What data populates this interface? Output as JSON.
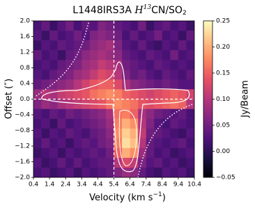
{
  "chart_data": {
    "type": "heatmap",
    "title_parts": [
      "L1448IRS3A ",
      "H",
      "13",
      "CN/SO",
      "2"
    ],
    "xlabel_parts": [
      "Velocity (km s",
      "−1",
      ")"
    ],
    "ylabel": "Offset (″)",
    "colorbar_label": "Jy/Beam",
    "colormap": "magma",
    "x": [
      0.65,
      1.15,
      1.65,
      2.15,
      2.65,
      3.15,
      3.65,
      4.15,
      4.65,
      5.15,
      5.65,
      6.15,
      6.65,
      7.15,
      7.65,
      8.15,
      8.65,
      9.15,
      9.65,
      10.15
    ],
    "y": [
      1.875,
      1.625,
      1.375,
      1.125,
      0.875,
      0.625,
      0.375,
      0.125,
      -0.125,
      -0.375,
      -0.625,
      -0.875,
      -1.125,
      -1.375,
      -1.625,
      -1.875
    ],
    "z": [
      [
        0.02,
        0.04,
        0.01,
        0.03,
        0.05,
        0.02,
        0.04,
        0.03,
        0.06,
        0.05,
        0.04,
        0.03,
        0.02,
        0.05,
        0.01,
        0.03,
        0.04,
        0.02,
        0.03,
        0.01
      ],
      [
        0.03,
        0.01,
        0.04,
        0.02,
        0.03,
        0.05,
        0.03,
        0.06,
        0.07,
        0.06,
        0.05,
        0.02,
        0.04,
        0.02,
        0.03,
        0.05,
        0.02,
        0.03,
        0.01,
        0.04
      ],
      [
        0.01,
        0.03,
        0.02,
        0.04,
        0.03,
        0.04,
        0.05,
        0.07,
        0.08,
        0.09,
        0.06,
        0.03,
        0.02,
        0.04,
        0.02,
        0.01,
        0.03,
        0.02,
        0.04,
        0.02
      ],
      [
        0.04,
        0.02,
        0.03,
        0.01,
        0.04,
        0.05,
        0.07,
        0.08,
        0.09,
        0.08,
        0.07,
        0.04,
        0.03,
        0.02,
        0.04,
        0.03,
        0.02,
        0.05,
        0.02,
        0.03
      ],
      [
        0.02,
        0.03,
        0.02,
        0.04,
        0.05,
        0.06,
        0.08,
        0.09,
        0.11,
        0.1,
        0.09,
        0.05,
        0.04,
        0.03,
        0.02,
        0.04,
        0.03,
        0.02,
        0.03,
        0.02
      ],
      [
        0.03,
        0.02,
        0.04,
        0.05,
        0.06,
        0.08,
        0.09,
        0.11,
        0.13,
        0.12,
        0.1,
        0.06,
        0.04,
        0.05,
        0.03,
        0.02,
        0.04,
        0.03,
        0.02,
        0.04
      ],
      [
        0.04,
        0.05,
        0.06,
        0.07,
        0.08,
        0.1,
        0.12,
        0.14,
        0.15,
        0.15,
        0.13,
        0.09,
        0.07,
        0.06,
        0.05,
        0.04,
        0.05,
        0.04,
        0.03,
        0.03
      ],
      [
        0.08,
        0.1,
        0.09,
        0.11,
        0.12,
        0.13,
        0.14,
        0.16,
        0.17,
        0.18,
        0.17,
        0.15,
        0.14,
        0.13,
        0.12,
        0.13,
        0.14,
        0.15,
        0.14,
        0.12
      ],
      [
        0.06,
        0.08,
        0.07,
        0.09,
        0.1,
        0.11,
        0.12,
        0.13,
        0.14,
        0.16,
        0.18,
        0.17,
        0.16,
        0.14,
        0.13,
        0.14,
        0.15,
        0.16,
        0.15,
        0.1
      ],
      [
        0.03,
        0.02,
        0.04,
        0.03,
        0.05,
        0.04,
        0.05,
        0.06,
        0.07,
        0.09,
        0.16,
        0.17,
        0.15,
        0.09,
        0.07,
        0.05,
        0.04,
        0.03,
        0.04,
        0.02
      ],
      [
        0.02,
        0.03,
        0.01,
        0.04,
        0.02,
        0.03,
        0.04,
        0.05,
        0.06,
        0.08,
        0.17,
        0.2,
        0.18,
        0.1,
        0.06,
        0.03,
        0.02,
        0.04,
        0.03,
        0.02
      ],
      [
        0.03,
        0.01,
        0.03,
        0.02,
        0.04,
        0.03,
        0.02,
        0.04,
        0.05,
        0.07,
        0.18,
        0.22,
        0.2,
        0.11,
        0.05,
        0.04,
        0.03,
        0.02,
        0.01,
        0.03
      ],
      [
        0.02,
        0.04,
        0.02,
        0.03,
        0.01,
        0.03,
        0.04,
        0.03,
        0.05,
        0.06,
        0.17,
        0.23,
        0.21,
        0.1,
        0.04,
        0.03,
        0.02,
        0.03,
        0.04,
        0.02
      ],
      [
        0.01,
        0.02,
        0.03,
        0.01,
        0.03,
        0.02,
        0.03,
        0.04,
        0.03,
        0.05,
        0.15,
        0.2,
        0.18,
        0.08,
        0.04,
        0.02,
        0.03,
        0.01,
        0.02,
        0.03
      ],
      [
        0.03,
        0.01,
        0.02,
        0.04,
        0.02,
        0.04,
        0.02,
        0.03,
        0.04,
        0.04,
        0.1,
        0.13,
        0.11,
        0.06,
        0.03,
        0.04,
        0.02,
        0.03,
        0.01,
        0.02
      ],
      [
        0.02,
        0.03,
        0.01,
        0.02,
        0.03,
        0.01,
        0.03,
        0.02,
        0.03,
        0.04,
        0.06,
        0.08,
        0.07,
        0.04,
        0.02,
        0.01,
        0.03,
        0.02,
        0.03,
        0.01
      ]
    ],
    "xlim": [
      0.4,
      10.4
    ],
    "ylim": [
      -2.0,
      2.0
    ],
    "xticks": [
      0.4,
      1.4,
      2.4,
      3.4,
      4.4,
      5.4,
      6.4,
      7.4,
      8.4,
      9.4,
      10.4
    ],
    "yticks": [
      {
        "value": 2.0,
        "label": "2.0"
      },
      1.6,
      1.2,
      0.8,
      0.4,
      {
        "value": 0.0,
        "label": "0.0"
      },
      {
        "value": -0.4,
        "label": "−0.4"
      },
      {
        "value": -0.8,
        "label": "−0.8"
      },
      {
        "value": -1.2,
        "label": "−1.2"
      },
      {
        "value": -1.6,
        "label": "−1.6"
      },
      {
        "value": -2.0,
        "label": "−2.0"
      }
    ],
    "clim": [
      -0.05,
      0.25
    ],
    "cticks": [
      {
        "value": -0.05,
        "label": "−0.05"
      },
      {
        "value": 0.0,
        "label": "0.00"
      },
      0.05,
      {
        "value": 0.1,
        "label": "0.10"
      },
      0.15,
      {
        "value": 0.2,
        "label": "0.20"
      },
      0.25
    ],
    "vline": 5.4,
    "hline": 0
  }
}
